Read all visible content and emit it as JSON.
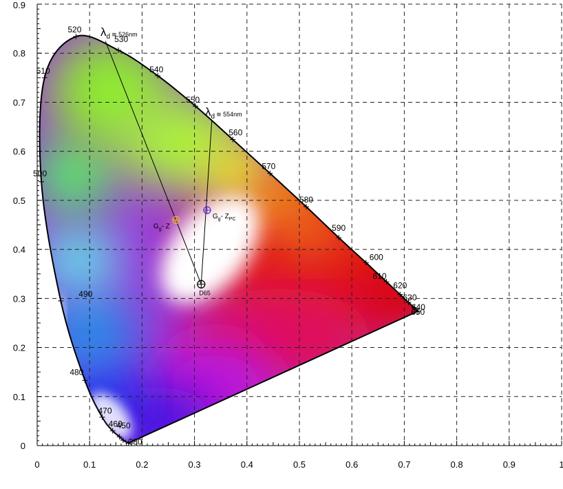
{
  "chart_data": {
    "type": "scatter",
    "title": "",
    "xlabel": "",
    "ylabel": "",
    "xlim": [
      0,
      1
    ],
    "ylim": [
      0,
      0.9
    ],
    "grid": true,
    "x_ticks": [
      "0",
      "0.1",
      "0.2",
      "0.3",
      "0.4",
      "0.5",
      "0.6",
      "0.7",
      "0.8",
      "0.9",
      "1"
    ],
    "y_ticks": [
      "0",
      "0.1",
      "0.2",
      "0.3",
      "0.4",
      "0.5",
      "0.6",
      "0.7",
      "0.8",
      "0.9"
    ],
    "spectral_locus": [
      {
        "label": "380",
        "x": 0.174,
        "y": 0.005
      },
      {
        "label": "440",
        "x": 0.164,
        "y": 0.011
      },
      {
        "label": "450",
        "x": 0.157,
        "y": 0.018
      },
      {
        "label": "460",
        "x": 0.144,
        "y": 0.03
      },
      {
        "label": "470",
        "x": 0.124,
        "y": 0.058
      },
      {
        "label": "480",
        "x": 0.091,
        "y": 0.133
      },
      {
        "label": "490",
        "x": 0.045,
        "y": 0.295
      },
      {
        "label": "500",
        "x": 0.008,
        "y": 0.538
      },
      {
        "label": "510",
        "x": 0.014,
        "y": 0.75
      },
      {
        "label": "520",
        "x": 0.074,
        "y": 0.834
      },
      {
        "label": "530",
        "x": 0.155,
        "y": 0.806
      },
      {
        "label": "540",
        "x": 0.23,
        "y": 0.754
      },
      {
        "label": "550",
        "x": 0.302,
        "y": 0.692
      },
      {
        "label": "560",
        "x": 0.373,
        "y": 0.624
      },
      {
        "label": "570",
        "x": 0.444,
        "y": 0.555
      },
      {
        "label": "580",
        "x": 0.513,
        "y": 0.487
      },
      {
        "label": "590",
        "x": 0.575,
        "y": 0.424
      },
      {
        "label": "600",
        "x": 0.627,
        "y": 0.373
      },
      {
        "label": "610",
        "x": 0.666,
        "y": 0.334
      },
      {
        "label": "620",
        "x": 0.692,
        "y": 0.308
      },
      {
        "label": "630",
        "x": 0.708,
        "y": 0.292
      },
      {
        "label": "640",
        "x": 0.719,
        "y": 0.281
      },
      {
        "label": "650",
        "x": 0.726,
        "y": 0.274
      }
    ],
    "visible_wavelength_labels": [
      "380",
      "450",
      "460",
      "470",
      "480",
      "490",
      "500",
      "510",
      "520",
      "530",
      "540",
      "550",
      "560",
      "570",
      "580",
      "590",
      "600",
      "610",
      "620",
      "630",
      "640",
      "650"
    ],
    "points": [
      {
        "label": "D65",
        "x": 0.3127,
        "y": 0.329,
        "color": "#000000"
      },
      {
        "label": "G",
        "sub": "g",
        "suffix": "- Z",
        "x": 0.265,
        "y": 0.46,
        "color": "#f0b030"
      },
      {
        "label": "G",
        "sub": "g",
        "suffix": "- Z",
        "suffix_sub": "PC",
        "x": 0.324,
        "y": 0.48,
        "color": "#5a2ad8"
      }
    ],
    "dominant_wavelength_lines": [
      {
        "from": {
          "x": 0.3127,
          "y": 0.329
        },
        "to": {
          "x": 0.13,
          "y": 0.825
        },
        "label": "≅ 526nm"
      },
      {
        "from": {
          "x": 0.3127,
          "y": 0.329
        },
        "to": {
          "x": 0.333,
          "y": 0.663
        },
        "label": "≅ 554nm"
      }
    ],
    "lambda_symbol": "λ",
    "lambda_sub": "d",
    "colors": {
      "locus_line": "#000000",
      "grid": "#222222",
      "background": "#ffffff"
    }
  }
}
